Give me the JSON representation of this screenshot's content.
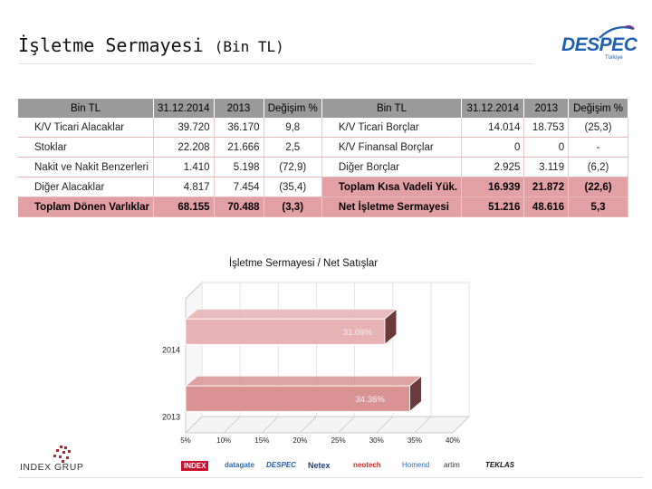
{
  "page": {
    "title_main": "İşletme Sermayesi",
    "title_unit": "(Bin TL)"
  },
  "logo": {
    "name": "DESPEC",
    "sub": "Türkiye"
  },
  "table": {
    "headers": [
      "Bin TL",
      "31.12.2014",
      "2013",
      "Değişim %",
      "Bin TL",
      "31.12.2014",
      "2013",
      "Değişim %"
    ],
    "rows": [
      {
        "l_label": "K/V Ticari Alacaklar",
        "l_y2014": "39.720",
        "l_y2013": "36.170",
        "l_chg": "9,8",
        "r_label": "K/V Ticari Borçlar",
        "r_y2014": "14.014",
        "r_y2013": "18.753",
        "r_chg": "(25,3)"
      },
      {
        "l_label": "Stoklar",
        "l_y2014": "22.208",
        "l_y2013": "21.666",
        "l_chg": "2,5",
        "r_label": "K/V Finansal Borçlar",
        "r_y2014": "0",
        "r_y2013": "0",
        "r_chg": "-"
      },
      {
        "l_label": "Nakit ve Nakit Benzerleri",
        "l_y2014": "1.410",
        "l_y2013": "5.198",
        "l_chg": "(72,9)",
        "r_label": "Diğer Borçlar",
        "r_y2014": "2.925",
        "r_y2013": "3.119",
        "r_chg": "(6,2)"
      },
      {
        "l_label": "Diğer Alacaklar",
        "l_y2014": "4.817",
        "l_y2013": "7.454",
        "l_chg": "(35,4)",
        "r_label": "Toplam Kısa Vadeli Yük.",
        "r_y2014": "16.939",
        "r_y2013": "21.872",
        "r_chg": "(22,6)"
      }
    ],
    "total": {
      "l_label": "Toplam Dönen Varlıklar",
      "l_y2014": "68.155",
      "l_y2013": "70.488",
      "l_chg": "(3,3)",
      "r_label": "Net İşletme Sermayesi",
      "r_y2014": "51.216",
      "r_y2013": "48.616",
      "r_chg": "5,3"
    }
  },
  "chart_data": {
    "type": "bar",
    "orientation": "horizontal",
    "title": "İşletme Sermayesi / Net Satışlar",
    "categories": [
      "2014",
      "2013"
    ],
    "values": [
      31.09,
      34.36
    ],
    "value_labels": [
      "31.09%",
      "34.36%"
    ],
    "xlim": [
      5,
      40
    ],
    "xticks": [
      "5%",
      "10%",
      "15%",
      "20%",
      "25%",
      "30%",
      "35%",
      "40%"
    ],
    "colors": [
      "#e6b2b4",
      "#d99393"
    ],
    "grid": true,
    "legend": "none",
    "style": "3d"
  },
  "footer": {
    "company": "INDEX GRUP",
    "brands": [
      "INDEX",
      "datagate",
      "DESPEC",
      "Netex",
      "neotech",
      "Homend",
      "artim",
      "TEKLAS"
    ]
  }
}
